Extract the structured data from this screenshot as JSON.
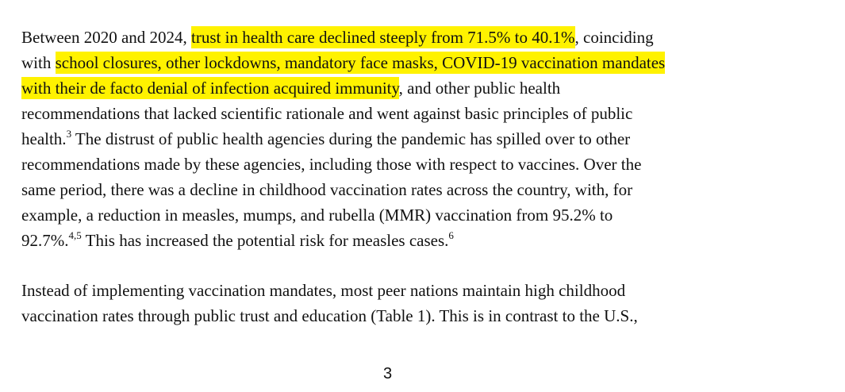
{
  "highlight_color": "#fff200",
  "paragraphs": [
    {
      "lines": [
        [
          {
            "t": "Between 2020 and 2024, "
          },
          {
            "t": "trust in health care declined steeply from 71.5% to 40.1%",
            "hl": true
          },
          {
            "t": ", coinciding"
          }
        ],
        [
          {
            "t": "with "
          },
          {
            "t": "school closures, other lockdowns, mandatory face masks, COVID-19 vaccination mandates",
            "hl": true
          }
        ],
        [
          {
            "t": "with their de facto denial of infection acquired immunity",
            "hl": true
          },
          {
            "t": ", and other public health"
          }
        ],
        [
          {
            "t": "recommendations that lacked scientific rationale and went against basic principles of public"
          }
        ],
        [
          {
            "t": "health."
          },
          {
            "t": "3",
            "sup": true
          },
          {
            "t": " The distrust of public health agencies during the pandemic has spilled over to other"
          }
        ],
        [
          {
            "t": "recommendations made by these agencies, including those with respect to vaccines. Over the"
          }
        ],
        [
          {
            "t": "same period, there was a decline in childhood vaccination rates across the country, with, for"
          }
        ],
        [
          {
            "t": "example, a reduction in measles, mumps, and rubella (MMR) vaccination from 95.2% to"
          }
        ],
        [
          {
            "t": "92.7%."
          },
          {
            "t": "4,5",
            "sup": true
          },
          {
            "t": " This has increased the potential risk for measles cases."
          },
          {
            "t": "6",
            "sup": true
          }
        ]
      ]
    },
    {
      "lines": [
        [
          {
            "t": "Instead of implementing vaccination mandates, most peer nations maintain high childhood"
          }
        ],
        [
          {
            "t": "vaccination rates through public trust and education (Table 1). This is in contrast to the U.S.,"
          }
        ]
      ]
    }
  ],
  "page_number": "3"
}
